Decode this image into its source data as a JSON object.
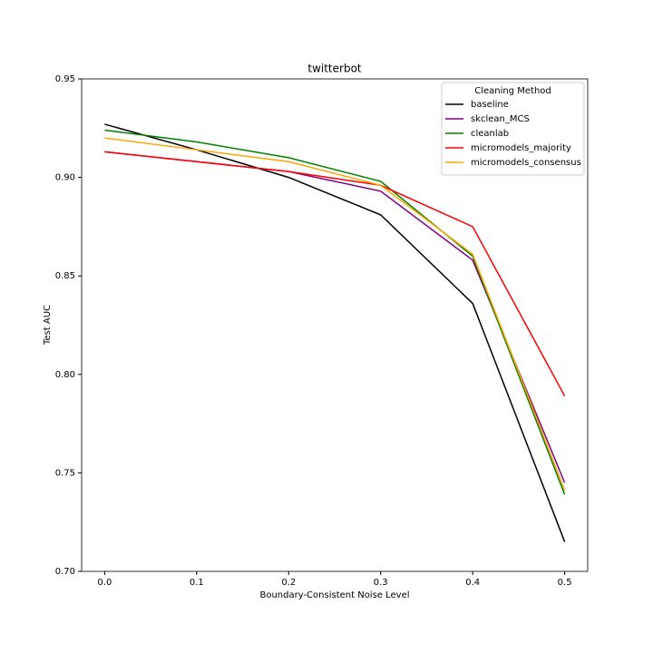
{
  "chart_data": {
    "type": "line",
    "title": "twitterbot",
    "x_label": "Boundary-Consistent Noise Level",
    "y_label": "Test AUC",
    "x": [
      0.0,
      0.1,
      0.2,
      0.3,
      0.4,
      0.5
    ],
    "xlim": [
      -0.025,
      0.525
    ],
    "xticks": [
      {
        "value": 0,
        "label": "0.0"
      },
      0.1,
      0.2,
      0.3,
      0.4,
      0.5
    ],
    "ylim": [
      0.7,
      0.95
    ],
    "yticks": [
      {
        "value": 0.7,
        "label": "0.70"
      },
      0.75,
      {
        "value": 0.8,
        "label": "0.80"
      },
      0.85,
      {
        "value": 0.9,
        "label": "0.90"
      },
      0.95
    ],
    "legend_title": "Cleaning Method",
    "legend_position": "upper right",
    "series": [
      {
        "name": "baseline",
        "color": "#000000",
        "values": [
          0.927,
          0.914,
          0.9,
          0.881,
          0.836,
          0.715
        ]
      },
      {
        "name": "skclean_MCS",
        "color": "#800080",
        "values": [
          0.913,
          0.908,
          0.903,
          0.893,
          0.858,
          0.745
        ]
      },
      {
        "name": "cleanlab",
        "color": "#008000",
        "values": [
          0.924,
          0.918,
          0.91,
          0.898,
          0.86,
          0.739
        ]
      },
      {
        "name": "micromodels_majority",
        "color": "#ff0000",
        "values": [
          0.913,
          0.908,
          0.903,
          0.896,
          0.875,
          0.789
        ]
      },
      {
        "name": "micromodels_consensus",
        "color": "#ffa500",
        "values": [
          0.92,
          0.914,
          0.908,
          0.896,
          0.861,
          0.741
        ]
      }
    ]
  }
}
